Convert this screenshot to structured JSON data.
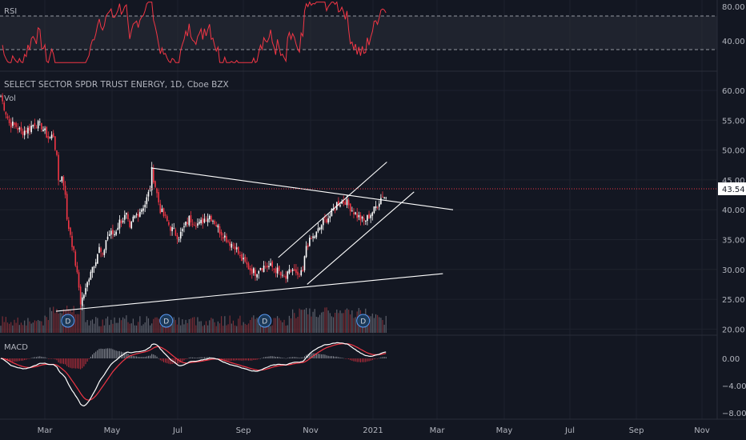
{
  "chart_data": [
    {
      "pane": "rsi",
      "type": "line",
      "label": "RSI",
      "y_ticks": [
        "80.00",
        "40.00"
      ],
      "guide_levels": [
        70,
        30
      ],
      "color": "#f23645"
    },
    {
      "pane": "price",
      "type": "candlestick",
      "title": "SELECT SECTOR SPDR TRUST ENERGY, 1D, Cboe BZX",
      "volume_label": "Vol",
      "y_ticks": [
        "60.00",
        "55.00",
        "50.00",
        "45.00",
        "40.00",
        "35.00",
        "30.00",
        "25.00",
        "20.00"
      ],
      "last_price": "43.54",
      "up_color": "#ffffff",
      "down_color": "#f23645",
      "dividend_marker": "D",
      "dividend_marker_count": 4,
      "close_path": [
        [
          0,
          59
        ],
        [
          5,
          54.5
        ],
        [
          9,
          54
        ],
        [
          12,
          53
        ],
        [
          16,
          53.5
        ],
        [
          20,
          54.5
        ],
        [
          24,
          54
        ],
        [
          28,
          52
        ],
        [
          31,
          52.5
        ],
        [
          33,
          48.5
        ],
        [
          34,
          45
        ],
        [
          36,
          45.5
        ],
        [
          38,
          43
        ],
        [
          39,
          38
        ],
        [
          41,
          36
        ],
        [
          44,
          31
        ],
        [
          46,
          27
        ],
        [
          47,
          24.5
        ],
        [
          50,
          26.5
        ],
        [
          53,
          30
        ],
        [
          55,
          31
        ],
        [
          58,
          33.5
        ],
        [
          60,
          32
        ],
        [
          62,
          35
        ],
        [
          64,
          36
        ],
        [
          67,
          36
        ],
        [
          70,
          38
        ],
        [
          74,
          39
        ],
        [
          76,
          36.5
        ],
        [
          78,
          38.5
        ],
        [
          81,
          39.5
        ],
        [
          85,
          41
        ],
        [
          88,
          43.5
        ],
        [
          89,
          46.5
        ],
        [
          91,
          44
        ],
        [
          94,
          40
        ],
        [
          97,
          38.5
        ],
        [
          100,
          37
        ],
        [
          103,
          36
        ],
        [
          105,
          35.5
        ],
        [
          108,
          37
        ],
        [
          111,
          38.5
        ],
        [
          114,
          38
        ],
        [
          117,
          37.5
        ],
        [
          120,
          38.5
        ],
        [
          123,
          39
        ],
        [
          126,
          38
        ],
        [
          129,
          36.5
        ],
        [
          132,
          35.5
        ],
        [
          135,
          34.5
        ],
        [
          138,
          34
        ],
        [
          141,
          32
        ],
        [
          144,
          31
        ],
        [
          147,
          30
        ],
        [
          150,
          29.5
        ],
        [
          153,
          30.5
        ],
        [
          156,
          30.5
        ],
        [
          159,
          30.5
        ],
        [
          162,
          30
        ],
        [
          164,
          29.5
        ],
        [
          166,
          28.5
        ],
        [
          168,
          28.5
        ],
        [
          170,
          29.5
        ],
        [
          172,
          30
        ],
        [
          175,
          28.5
        ],
        [
          178,
          29.5
        ],
        [
          180,
          34
        ],
        [
          183,
          35
        ],
        [
          186,
          36
        ],
        [
          190,
          38
        ],
        [
          194,
          39
        ],
        [
          198,
          41
        ],
        [
          203,
          41.5
        ],
        [
          207,
          40
        ],
        [
          210,
          39
        ],
        [
          214,
          38
        ],
        [
          217,
          39
        ],
        [
          220,
          40
        ],
        [
          223,
          41.5
        ],
        [
          225,
          42.5
        ],
        [
          227,
          42
        ]
      ],
      "trendlines": [
        {
          "name": "descending-resistance",
          "from": [
            89,
            47
          ],
          "to": [
            267,
            40
          ]
        },
        {
          "name": "rising-support",
          "from": [
            33,
            23
          ],
          "to": [
            261,
            29.3
          ]
        },
        {
          "name": "channel-upper",
          "from": [
            164,
            32
          ],
          "to": [
            228,
            48
          ]
        },
        {
          "name": "channel-lower",
          "from": [
            181,
            27.5
          ],
          "to": [
            244,
            43
          ]
        }
      ]
    },
    {
      "pane": "macd",
      "type": "line",
      "label": "MACD",
      "y_ticks": [
        "0.00",
        "−4.00",
        "−8.00"
      ],
      "macd_color": "#ffffff",
      "signal_color": "#f23645",
      "histogram_color": "#b2b5be"
    }
  ],
  "x_axis": {
    "ticks": [
      "Mar",
      "May",
      "Jul",
      "Sep",
      "Nov",
      "2021",
      "Mar",
      "May",
      "Jul",
      "Sep",
      "Nov"
    ]
  }
}
